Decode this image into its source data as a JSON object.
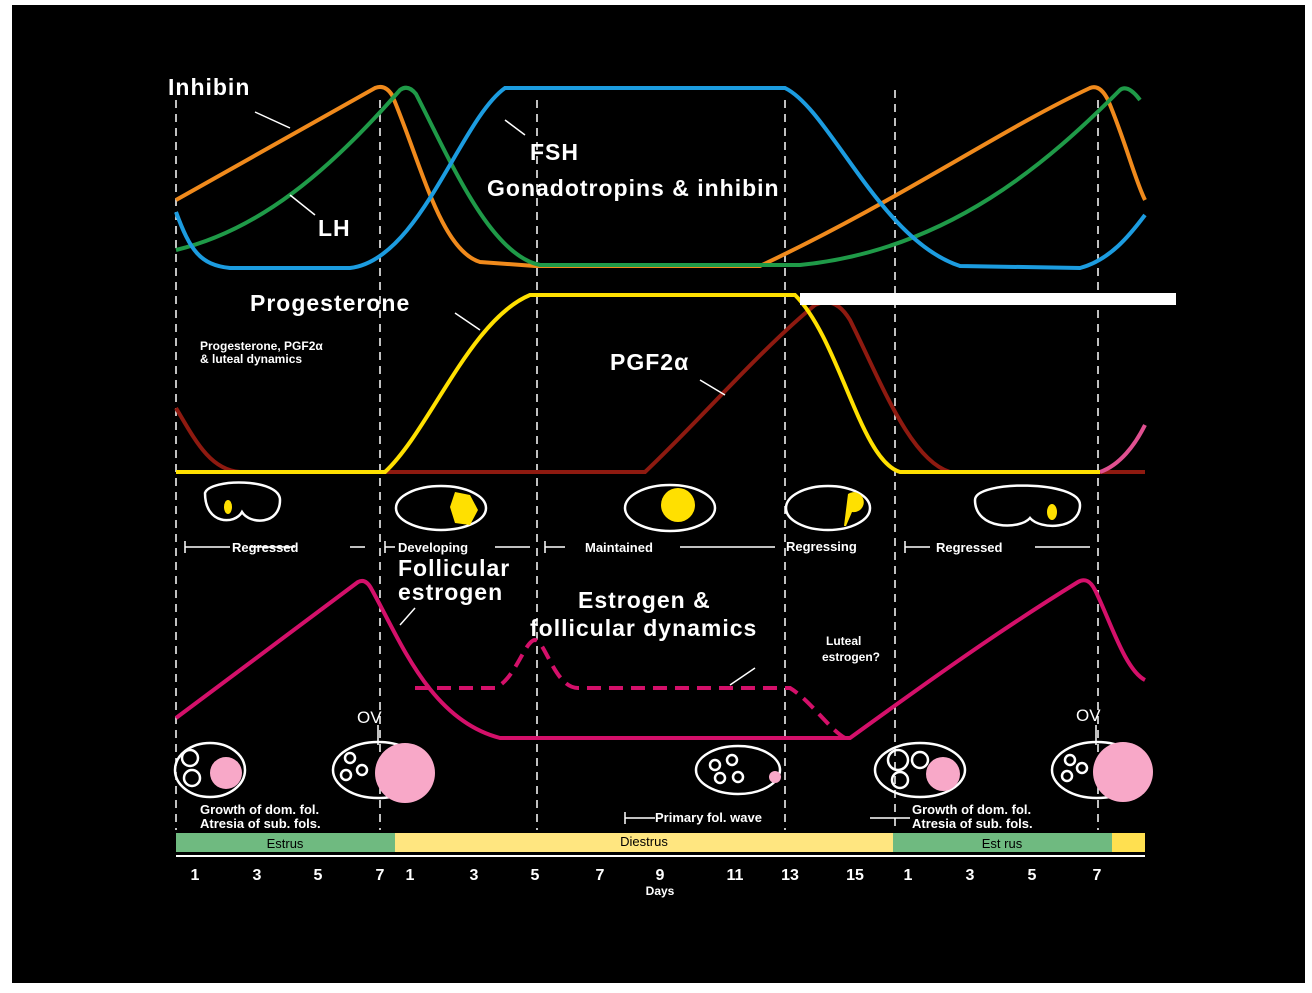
{
  "hormones": {
    "inhibin": "Inhibin",
    "fsh": "FSH",
    "gonadotropins": "Gonadotropins & inhibin",
    "lh": "LH",
    "progesterone": "Progesterone",
    "luteal_panel": [
      "Progesterone, PGF2α",
      "& luteal dynamics"
    ],
    "pgf2a": "PGF2α",
    "follicular_estrogen": [
      "Follicular",
      "estrogen"
    ],
    "estrogen_panel": [
      "Estrogen &",
      "follicular dynamics"
    ],
    "luteal_estrogen": [
      "Luteal",
      "estrogen?"
    ]
  },
  "cl_stages": [
    "Regressed",
    "Developing",
    "Maintained",
    "Regressing",
    "Regressed"
  ],
  "ovulation": [
    "OV",
    "OV"
  ],
  "follicle_notes": [
    [
      "Growth of dom. fol.",
      "Atresia of sub. fols."
    ],
    [
      "Growth of dom. fol.",
      "Atresia of sub. fols."
    ]
  ],
  "primary_wave": "Primary fol. wave",
  "phases": [
    "Estrus",
    "Diestrus",
    "Est rus"
  ],
  "days": [
    "1",
    "3",
    "5",
    "7",
    "1",
    "3",
    "5",
    "7",
    "9",
    "11",
    "13",
    "15",
    "1",
    "3",
    "5",
    "7"
  ],
  "days_label": "Days"
}
